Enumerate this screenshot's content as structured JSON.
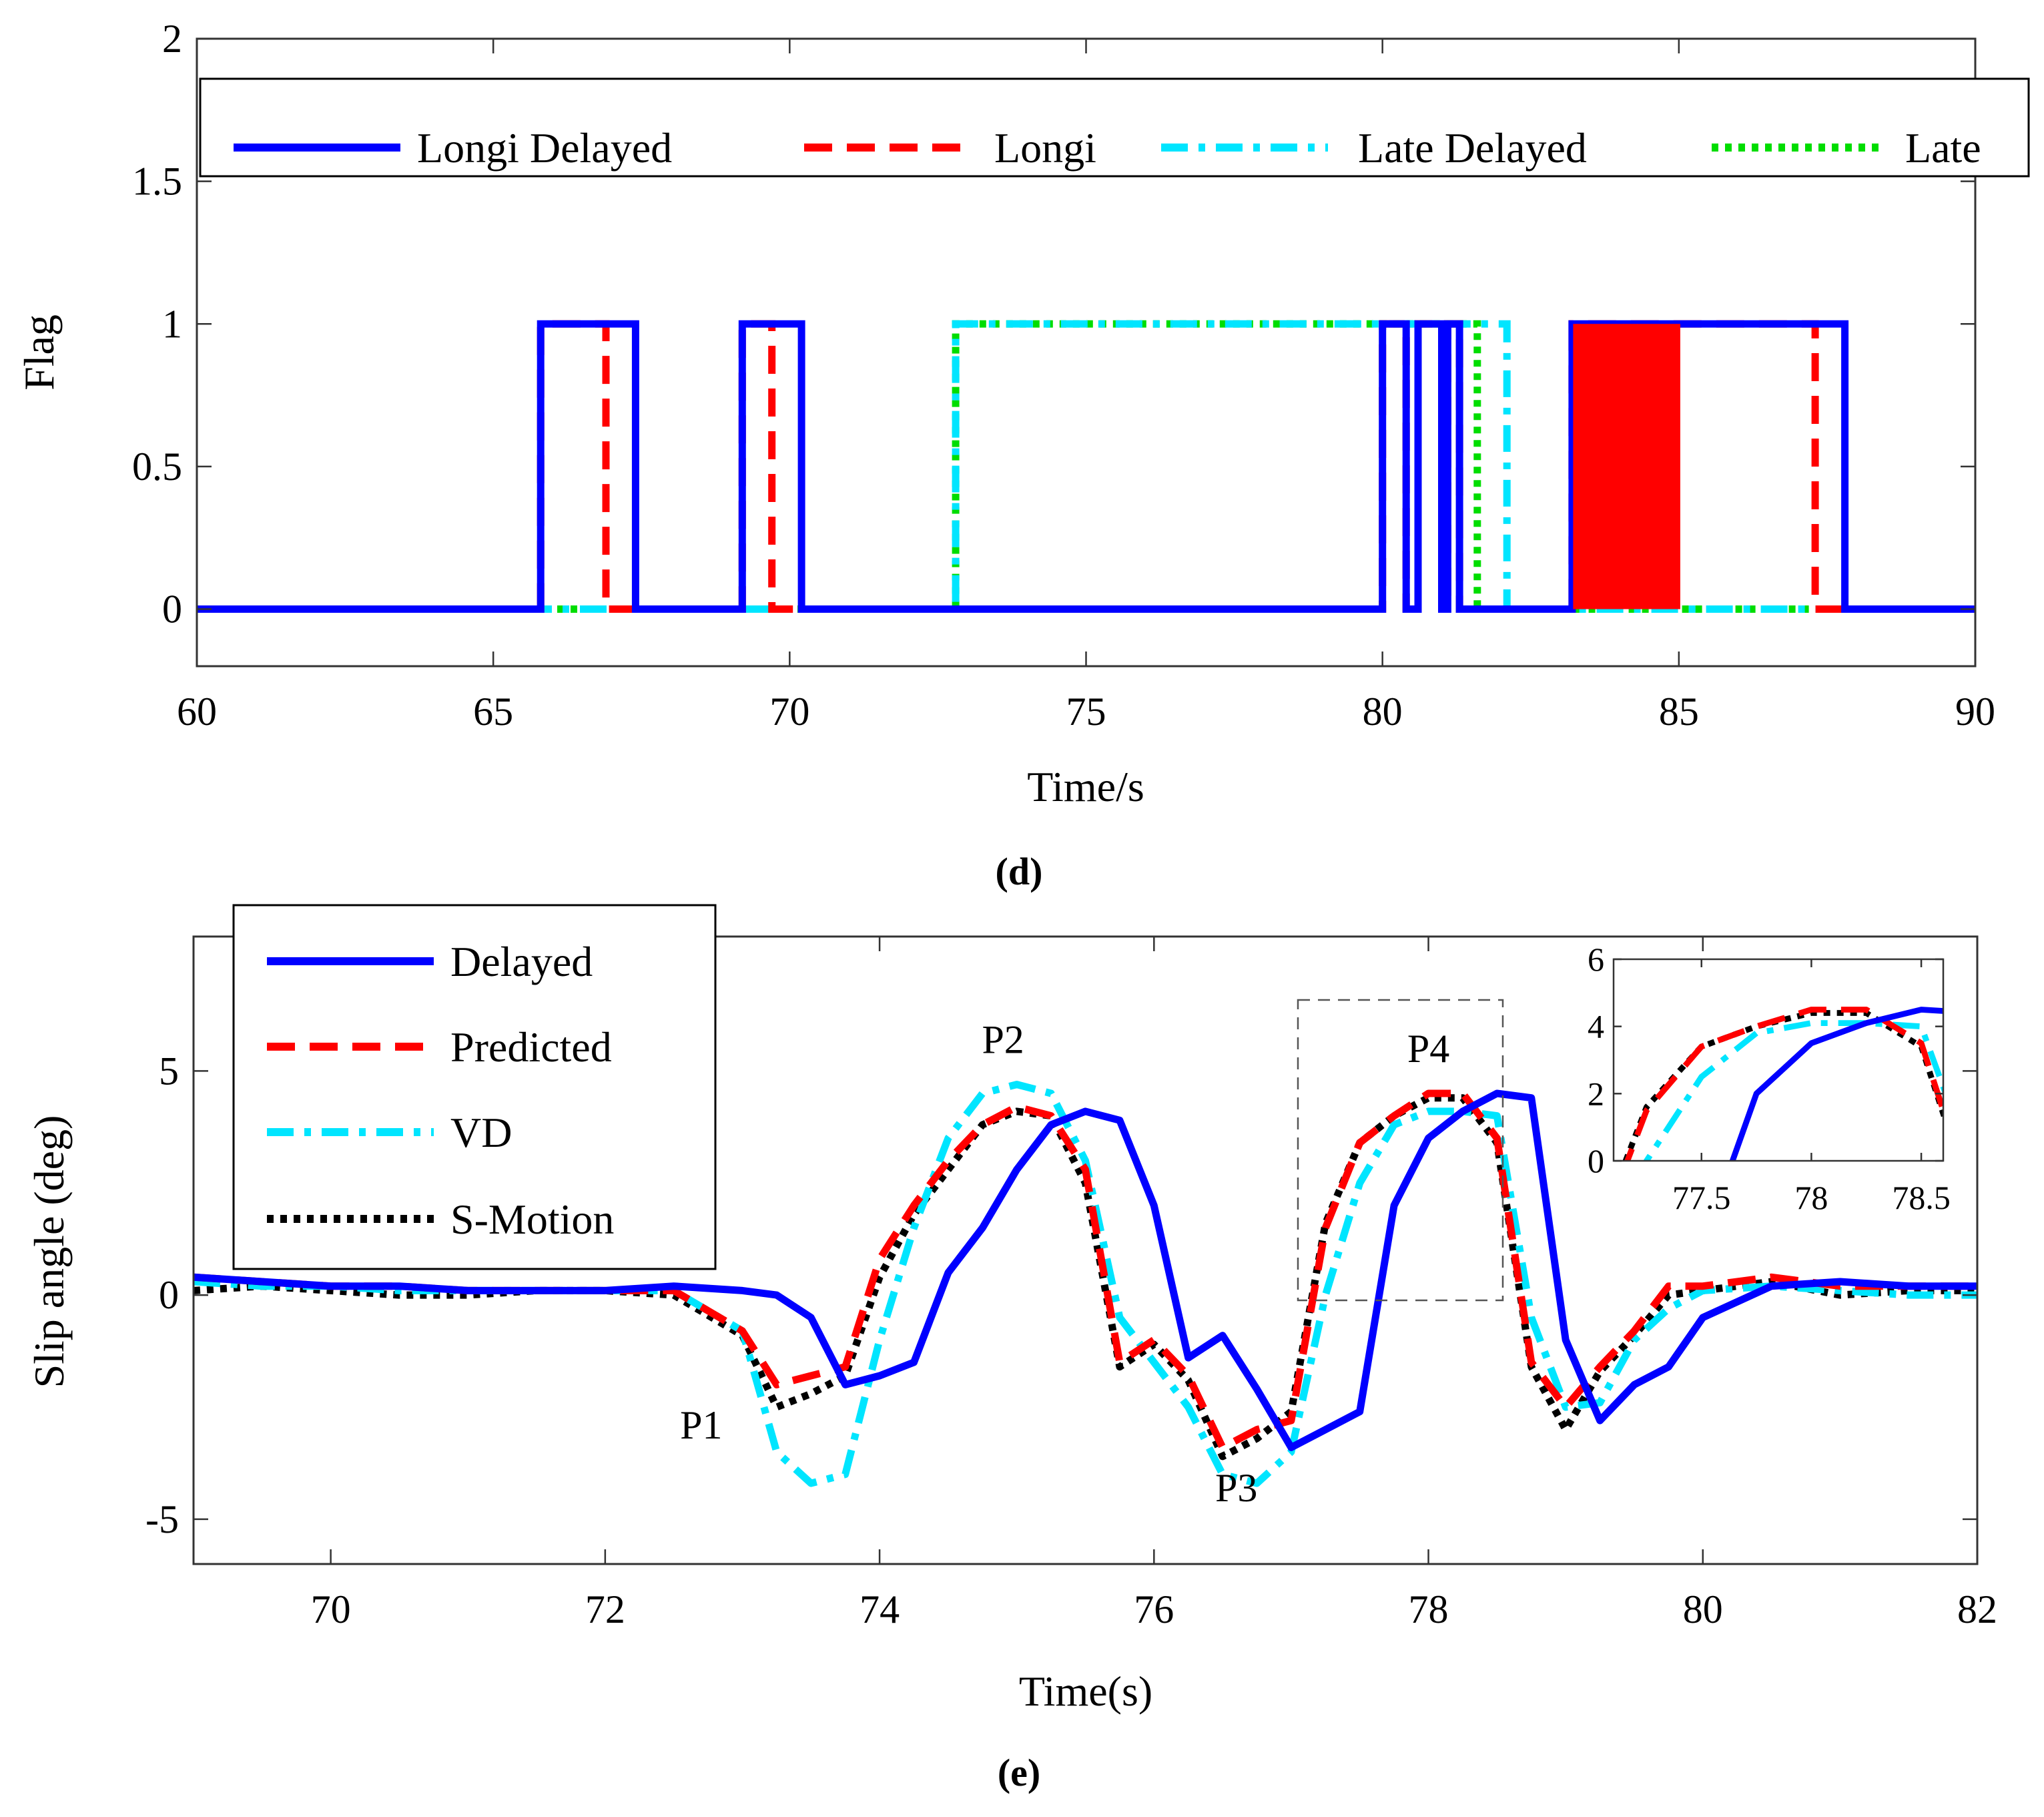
{
  "panel_d": {
    "caption": "(d)",
    "chart_data": {
      "type": "line",
      "xlabel": "Time/s",
      "ylabel": "Flag",
      "xlim": [
        60,
        90
      ],
      "ylim": [
        -0.2,
        2
      ],
      "xticks": [
        "60",
        "65",
        "70",
        "75",
        "80",
        "85",
        "90"
      ],
      "yticks": [
        "0",
        "0.5",
        "1",
        "1.5",
        "2"
      ],
      "grid": false,
      "legend_position": "top",
      "series": [
        {
          "name": "Longi Delayed",
          "color": "#0000ff",
          "style": "solid",
          "intervals": [
            [
              65.8,
              67.4
            ],
            [
              69.2,
              70.2
            ],
            [
              80.0,
              80.4
            ],
            [
              80.6,
              81.0
            ],
            [
              81.1,
              81.3
            ],
            [
              83.2,
              87.8
            ]
          ]
        },
        {
          "name": "Longi",
          "color": "#ff0000",
          "style": "dashed",
          "intervals": [
            [
              65.8,
              66.9
            ],
            [
              69.2,
              69.7
            ],
            [
              80.0,
              80.4
            ],
            [
              80.6,
              81.0
            ],
            [
              81.1,
              81.3
            ],
            [
              83.2,
              87.3
            ]
          ]
        },
        {
          "name": "Late Delayed",
          "color": "#00e5ff",
          "style": "dashdot",
          "intervals": [
            [
              72.8,
              82.1
            ]
          ]
        },
        {
          "name": "Late",
          "color": "#00dd00",
          "style": "dotted",
          "intervals": [
            [
              72.8,
              81.6
            ]
          ]
        }
      ]
    }
  },
  "panel_e": {
    "caption": "(e)",
    "chart_data": {
      "type": "line",
      "xlabel": "Time(s)",
      "ylabel": "Slip angle (deg)",
      "xlim": [
        69,
        82
      ],
      "ylim": [
        -6,
        8
      ],
      "xticks": [
        "70",
        "72",
        "74",
        "76",
        "78",
        "80",
        "82"
      ],
      "yticks": [
        "-5",
        "0",
        "5"
      ],
      "grid": false,
      "legend_position": "top-left",
      "annotations": [
        {
          "text": "P1",
          "x": 72.7,
          "y": -3.2
        },
        {
          "text": "P2",
          "x": 74.9,
          "y": 5.4
        },
        {
          "text": "P3",
          "x": 76.6,
          "y": -4.6
        },
        {
          "text": "P4",
          "x": 78.0,
          "y": 5.2
        }
      ],
      "x": [
        69,
        69.5,
        70,
        70.5,
        71,
        71.5,
        72,
        72.5,
        73,
        73.25,
        73.5,
        73.75,
        74,
        74.25,
        74.5,
        74.75,
        75,
        75.25,
        75.5,
        75.75,
        76,
        76.25,
        76.5,
        76.75,
        77,
        77.25,
        77.5,
        77.75,
        78,
        78.25,
        78.5,
        78.75,
        79,
        79.25,
        79.5,
        79.75,
        80,
        80.5,
        81,
        81.5,
        82
      ],
      "series": [
        {
          "name": "Delayed",
          "color": "#0000ff",
          "style": "solid",
          "values": [
            0.4,
            0.3,
            0.2,
            0.2,
            0.1,
            0.1,
            0.1,
            0.2,
            0.1,
            0.0,
            -0.5,
            -2.0,
            -1.8,
            -1.5,
            0.5,
            1.5,
            2.8,
            3.8,
            4.1,
            3.9,
            2.0,
            -1.4,
            -0.9,
            -2.1,
            -3.4,
            -3.0,
            -2.6,
            2.0,
            3.5,
            4.1,
            4.5,
            4.4,
            -1.0,
            -2.8,
            -2.0,
            -1.6,
            -0.5,
            0.2,
            0.3,
            0.2,
            0.2
          ]
        },
        {
          "name": "Predicted",
          "color": "#ff0000",
          "style": "dashed",
          "values": [
            0.4,
            0.3,
            0.2,
            0.2,
            0.1,
            0.1,
            0.1,
            0.1,
            -0.8,
            -2.0,
            -1.8,
            -1.6,
            0.8,
            2.0,
            3.0,
            3.8,
            4.2,
            4.0,
            2.8,
            -1.5,
            -1.0,
            -1.8,
            -3.4,
            -3.0,
            -2.8,
            1.5,
            3.4,
            4.0,
            4.5,
            4.5,
            3.5,
            -1.5,
            -2.5,
            -1.6,
            -0.8,
            0.2,
            0.2,
            0.4,
            0.2,
            0.2,
            0.2
          ]
        },
        {
          "name": "VD",
          "color": "#00e5ff",
          "style": "dashdot",
          "values": [
            0.3,
            0.2,
            0.2,
            0.1,
            0.1,
            0.1,
            0.1,
            0.1,
            -0.8,
            -3.5,
            -4.2,
            -4.0,
            -1.0,
            1.5,
            3.5,
            4.5,
            4.7,
            4.5,
            3.0,
            -0.5,
            -1.5,
            -2.5,
            -4.0,
            -4.2,
            -3.5,
            0.0,
            2.5,
            3.8,
            4.1,
            4.1,
            4.0,
            -0.5,
            -2.5,
            -2.4,
            -1.0,
            -0.3,
            0.1,
            0.2,
            0.1,
            0.0,
            0.0
          ]
        },
        {
          "name": "S-Motion",
          "color": "#000000",
          "style": "dotted",
          "values": [
            0.1,
            0.2,
            0.1,
            0.0,
            0.0,
            0.1,
            0.1,
            0.0,
            -0.9,
            -2.5,
            -2.2,
            -1.8,
            0.4,
            1.8,
            2.8,
            3.8,
            4.1,
            4.0,
            2.5,
            -1.6,
            -1.1,
            -1.9,
            -3.6,
            -3.2,
            -2.6,
            1.6,
            3.4,
            4.0,
            4.4,
            4.4,
            3.4,
            -1.6,
            -3.0,
            -1.7,
            -0.9,
            0.0,
            0.1,
            0.3,
            0.0,
            0.1,
            0.1
          ]
        }
      ],
      "inset": {
        "xlim": [
          77.1,
          78.6
        ],
        "ylim": [
          0,
          6
        ],
        "xticks": [
          "77.5",
          "78",
          "78.5"
        ],
        "yticks": [
          "0",
          "2",
          "4",
          "6"
        ]
      }
    }
  }
}
